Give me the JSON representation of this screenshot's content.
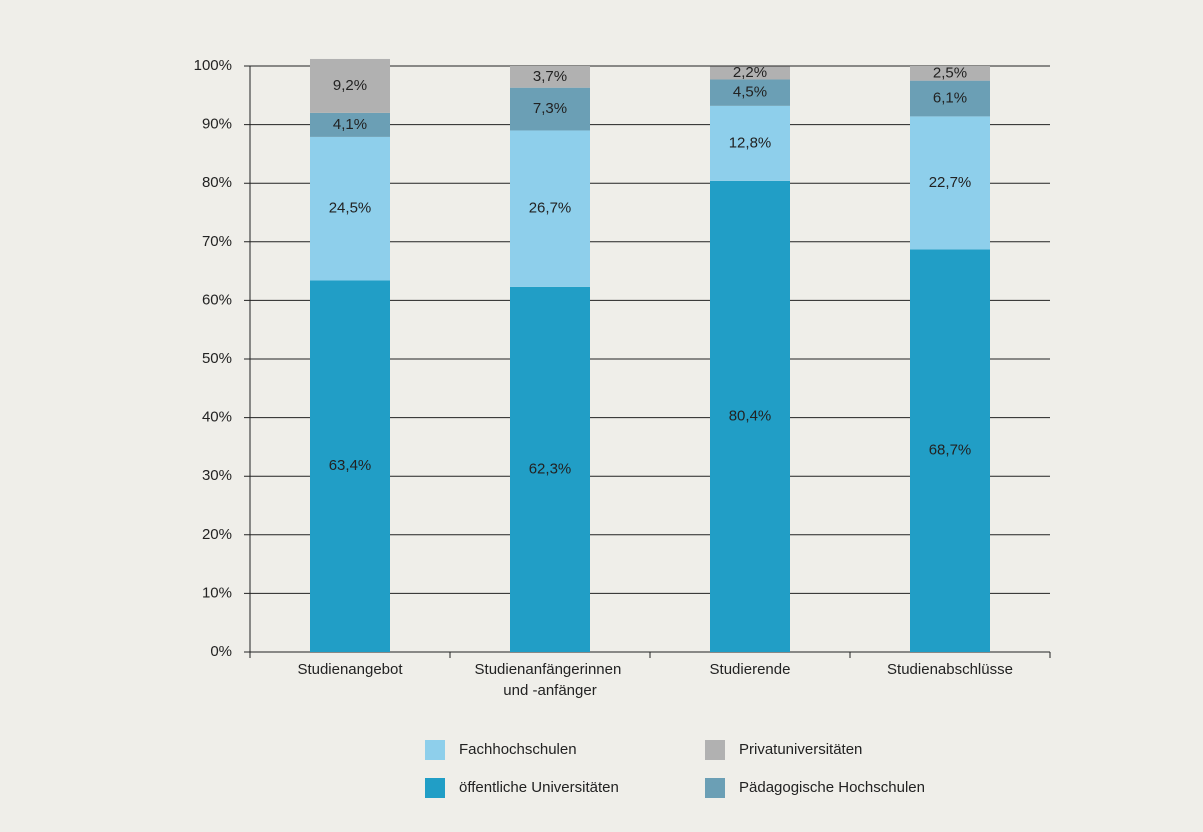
{
  "chart_data": {
    "type": "stacked_bar",
    "categories": [
      "Studienangebot",
      "Studienanfängerinnen und -anfänger",
      "Studierende",
      "Studienabschlüsse"
    ],
    "series": [
      {
        "name": "öffentliche Universitäten",
        "color": "#219ec6",
        "values": [
          63.4,
          62.3,
          80.4,
          68.7
        ],
        "value_labels": [
          "63,4%",
          "62,3%",
          "80,4%",
          "68,7%"
        ]
      },
      {
        "name": "Fachhochschulen",
        "color": "#8ecfeb",
        "values": [
          24.5,
          26.7,
          12.8,
          22.7
        ],
        "value_labels": [
          "24,5%",
          "26,7%",
          "12,8%",
          "22,7%"
        ]
      },
      {
        "name": "Pädagogische Hochschulen",
        "color": "#6b9fb5",
        "values": [
          4.1,
          7.3,
          4.5,
          6.1
        ],
        "value_labels": [
          "4,1%",
          "7,3%",
          "4,5%",
          "6,1%"
        ]
      },
      {
        "name": "Privatuniversitäten",
        "color": "#b1b1b1",
        "values": [
          9.2,
          3.7,
          2.2,
          2.5
        ],
        "value_labels": [
          "9,2%",
          "3,7%",
          "2,2%",
          "2,5%"
        ]
      }
    ],
    "ylim": [
      0,
      100
    ],
    "yticks": [
      {
        "value": 0,
        "label": "0%"
      },
      {
        "value": 10,
        "label": "10%"
      },
      {
        "value": 20,
        "label": "20%"
      },
      {
        "value": 30,
        "label": "30%"
      },
      {
        "value": 40,
        "label": "40%"
      },
      {
        "value": 50,
        "label": "50%"
      },
      {
        "value": 60,
        "label": "60%"
      },
      {
        "value": 70,
        "label": "70%"
      },
      {
        "value": 80,
        "label": "80%"
      },
      {
        "value": 90,
        "label": "90%"
      },
      {
        "value": 100,
        "label": "100%"
      }
    ],
    "grid": true
  }
}
